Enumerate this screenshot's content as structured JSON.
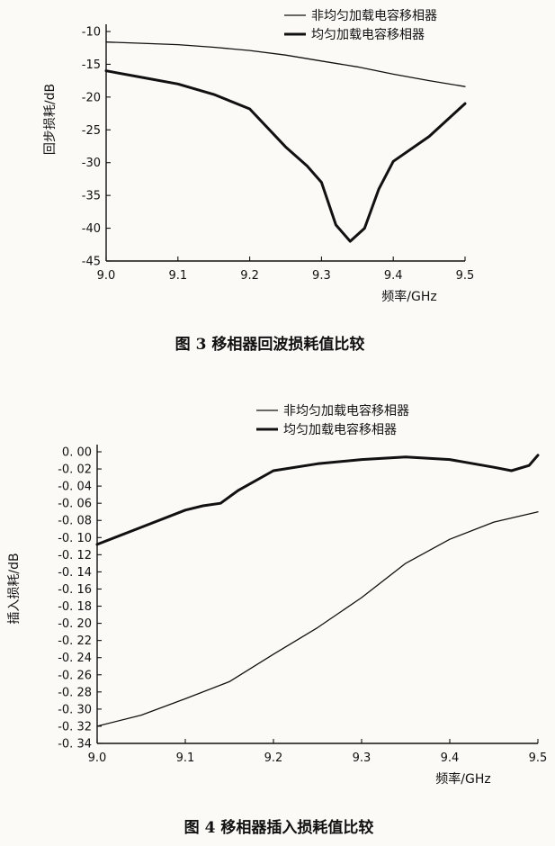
{
  "chart_data": [
    {
      "type": "line",
      "caption": "图 3  移相器回波损耗值比较",
      "xlabel": "频率/GHz",
      "ylabel": "回步损耗/dB",
      "xlim": [
        9.0,
        9.5
      ],
      "ylim": [
        -45,
        -10
      ],
      "xticks": [
        9.0,
        9.1,
        9.2,
        9.3,
        9.4,
        9.5
      ],
      "xtick_labels": [
        "9.0",
        "9.1",
        "9.2",
        "9.3",
        "9.4",
        "9.5"
      ],
      "yticks": [
        -10,
        -15,
        -20,
        -25,
        -30,
        -35,
        -40,
        -45
      ],
      "ytick_labels": [
        "-10",
        "-15",
        "-20",
        "-25",
        "-30",
        "-35",
        "-40",
        "-45"
      ],
      "grid": false,
      "legend_position": "top-right",
      "series": [
        {
          "name": "非均匀加载电容移相器",
          "weight": "thin",
          "x": [
            9.0,
            9.05,
            9.1,
            9.15,
            9.2,
            9.25,
            9.3,
            9.35,
            9.4,
            9.45,
            9.5
          ],
          "y": [
            -11.6,
            -11.8,
            -12.0,
            -12.4,
            -12.9,
            -13.6,
            -14.5,
            -15.4,
            -16.5,
            -17.5,
            -18.4
          ]
        },
        {
          "name": "均匀加载电容移相器",
          "weight": "thick",
          "x": [
            9.0,
            9.05,
            9.1,
            9.15,
            9.2,
            9.25,
            9.28,
            9.3,
            9.32,
            9.34,
            9.36,
            9.38,
            9.4,
            9.45,
            9.5
          ],
          "y": [
            -16.0,
            -17.0,
            -18.0,
            -19.6,
            -21.8,
            -27.6,
            -30.5,
            -33.0,
            -39.5,
            -42.0,
            -40.0,
            -34.0,
            -29.8,
            -26.0,
            -21.0
          ]
        }
      ]
    },
    {
      "type": "line",
      "caption": "图 4  移相器插入损耗值比较",
      "xlabel": "频率/GHz",
      "ylabel": "插入损耗/dB",
      "xlim": [
        9.0,
        9.5
      ],
      "ylim": [
        -0.34,
        0.0
      ],
      "xticks": [
        9.0,
        9.1,
        9.2,
        9.3,
        9.4,
        9.5
      ],
      "xtick_labels": [
        "9.0",
        "9.1",
        "9.2",
        "9.3",
        "9.4",
        "9.5"
      ],
      "yticks": [
        0.0,
        -0.02,
        -0.04,
        -0.06,
        -0.08,
        -0.1,
        -0.12,
        -0.14,
        -0.16,
        -0.18,
        -0.2,
        -0.22,
        -0.24,
        -0.26,
        -0.28,
        -0.3,
        -0.32,
        -0.34
      ],
      "ytick_labels": [
        "0. 00",
        "-0. 02",
        "-0. 04",
        "-0. 06",
        "-0. 08",
        "-0. 10",
        "-0. 12",
        "-0. 14",
        "-0. 16",
        "-0. 18",
        "-0. 20",
        "-0. 22",
        "-0. 24",
        "-0. 26",
        "-0. 28",
        "-0. 30",
        "-0. 32",
        "-0. 34"
      ],
      "grid": false,
      "legend_position": "top-right",
      "series": [
        {
          "name": "非均匀加载电容移相器",
          "weight": "thin",
          "x": [
            9.0,
            9.05,
            9.1,
            9.15,
            9.2,
            9.25,
            9.3,
            9.35,
            9.4,
            9.45,
            9.5
          ],
          "y": [
            -0.32,
            -0.307,
            -0.288,
            -0.268,
            -0.236,
            -0.205,
            -0.17,
            -0.13,
            -0.102,
            -0.082,
            -0.07
          ]
        },
        {
          "name": "均匀加载电容移相器",
          "weight": "thick",
          "x": [
            9.0,
            9.05,
            9.1,
            9.12,
            9.14,
            9.16,
            9.2,
            9.25,
            9.3,
            9.35,
            9.4,
            9.45,
            9.47,
            9.49,
            9.5
          ],
          "y": [
            -0.108,
            -0.088,
            -0.068,
            -0.063,
            -0.06,
            -0.045,
            -0.022,
            -0.014,
            -0.009,
            -0.006,
            -0.009,
            -0.018,
            -0.022,
            -0.016,
            -0.004
          ]
        }
      ]
    }
  ]
}
